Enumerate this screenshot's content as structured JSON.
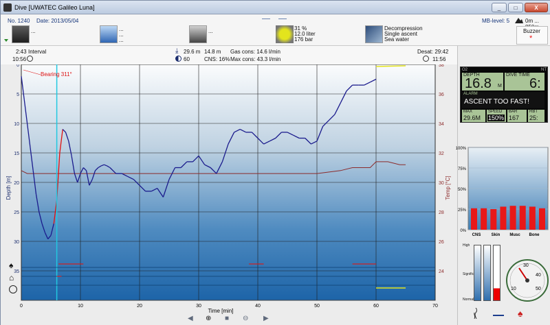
{
  "window": {
    "title": "Dive  [UWATEC Galileo Luna]",
    "minimize": "_",
    "maximize": "□",
    "close": "X"
  },
  "info": {
    "number": "No. 1240",
    "date": "Date: 2013/05/04",
    "mb_level": "MB-level: 5",
    "altitude": "0m ... 850m",
    "buddy_lines": [
      "..."
    ],
    "weather_lines": [
      "...",
      "...",
      "..."
    ],
    "equipment_line": "...",
    "gas_lines": [
      "31 %",
      "12.0 liter",
      "176 bar"
    ],
    "dive_type_lines": [
      "Decompression",
      "Single ascent",
      "Sea water"
    ],
    "buzzer_label": "Buzzer",
    "buzzer_mark": "*"
  },
  "stats": {
    "interval_time": "2:43",
    "interval_label": "Interval",
    "start_time": "10:56",
    "max_depth": "29.6 m",
    "avg_depth": "14.8 m",
    "gas_cons": "Gas cons: 14.6 l/min",
    "duration": "60",
    "cns": "CNS:  16%",
    "max_cons": "Max cons: 43.3 l/min",
    "desat": "Desat: 29:42",
    "end_time": "11:56"
  },
  "chart_data": {
    "type": "line",
    "xlabel": "Time [min]",
    "ylabel": "Depth [m]",
    "y2label": "Temp [°C]",
    "xlim": [
      0,
      70
    ],
    "ylim": [
      0,
      40
    ],
    "y2lim": [
      22,
      38
    ],
    "x_ticks": [
      0,
      10,
      20,
      30,
      40,
      50,
      60,
      70
    ],
    "y_ticks": [
      0,
      5,
      10,
      15,
      20,
      25,
      30,
      35
    ],
    "y2_ticks": [
      38,
      36,
      34,
      32,
      30,
      28,
      26,
      24
    ],
    "annotation": "Bearing 311°",
    "series": [
      {
        "color": "#1a1a8c",
        "x": [
          0,
          0.5,
          1,
          1.5,
          2,
          2.5,
          3,
          3.5,
          4,
          4.5,
          5,
          5.5,
          6,
          6.5,
          7,
          7.5,
          8,
          8.5,
          9,
          9.5,
          10,
          10.5,
          11,
          11.5,
          12,
          12.5,
          13,
          13.5,
          14,
          14.5,
          15,
          16,
          17,
          18,
          19,
          20,
          21,
          22,
          23,
          24,
          25,
          26,
          27,
          28,
          29,
          30,
          31,
          32,
          33,
          34,
          35,
          36,
          37,
          38,
          39,
          40,
          41,
          42,
          43,
          44,
          45,
          46,
          47,
          48,
          49,
          50,
          51,
          52,
          53,
          54,
          55,
          56,
          57,
          58,
          59,
          60
        ],
        "y": [
          2,
          6,
          10,
          14,
          18,
          22,
          25,
          27,
          28.5,
          29.6,
          29,
          27,
          23,
          15,
          11,
          11.5,
          13,
          15.5,
          18.5,
          20,
          18.5,
          17.5,
          18,
          20.5,
          19.5,
          18,
          17.5,
          17.2,
          17,
          17.2,
          17.5,
          18.5,
          18.5,
          19,
          19.5,
          20.5,
          21.5,
          21.5,
          21,
          22.5,
          19.5,
          17.5,
          17.5,
          16.5,
          16.5,
          15.5,
          17,
          17.5,
          18.5,
          16.5,
          13.5,
          11.5,
          11,
          11.5,
          11.5,
          12.5,
          13.5,
          13,
          12.5,
          11.5,
          11.5,
          12,
          12.5,
          12.5,
          13.5,
          13,
          10.5,
          9.5,
          8.5,
          6.5,
          4.5,
          3.5,
          3.5,
          3.5,
          3,
          2.5
        ]
      },
      {
        "color": "#8c2a2a",
        "x": [
          0,
          1,
          2,
          3,
          4,
          5,
          6,
          7,
          8,
          9,
          10,
          12,
          20,
          30,
          40,
          46,
          50,
          54,
          56,
          57,
          58,
          59,
          60,
          62,
          64,
          65
        ],
        "y": [
          30.8,
          30.6,
          30.6,
          30.6,
          30.6,
          30.6,
          30.6,
          30.6,
          30.6,
          30.6,
          30.6,
          30.6,
          30.6,
          30.6,
          30.6,
          30.6,
          30.6,
          30.8,
          31,
          31,
          31,
          31,
          31.4,
          31.4,
          31.2,
          31.2
        ]
      }
    ]
  },
  "right": {
    "o2_label": "O2",
    "nt_label": "NT",
    "depth_label": "DEPTH",
    "depth_value": "16.8",
    "depth_unit": "M",
    "divetime_label": "DIVE TIME",
    "divetime_value": "6:",
    "alarm_label": "ALARM",
    "alarm_text": "ASCENT TOO FAST!",
    "max_label": "MAX",
    "max_value": "29.6M",
    "speed_label": "SPEED",
    "speed_value": "150%",
    "bar_label": "BAR",
    "bar_value": "167",
    "rbt_label": "RBT",
    "rbt_value": "25:",
    "tissue_y_ticks": [
      "100%",
      "75%",
      "50%",
      "25%",
      "0%"
    ],
    "tissue_bars": [
      26,
      26,
      25,
      28,
      29,
      29,
      28,
      26
    ],
    "tissue_labels": [
      "CNS",
      "Skin",
      "Musc",
      "Bone"
    ],
    "gauge_labels": {
      "top": "High",
      "mid": "Significant",
      "low": "Normal"
    },
    "compass_marks": [
      "10",
      "30",
      "40",
      "50"
    ]
  },
  "nav": {
    "prev": "◀",
    "zoom_in": "⊕",
    "stop": "■",
    "zoom_out": "⊖",
    "next": "▶"
  }
}
